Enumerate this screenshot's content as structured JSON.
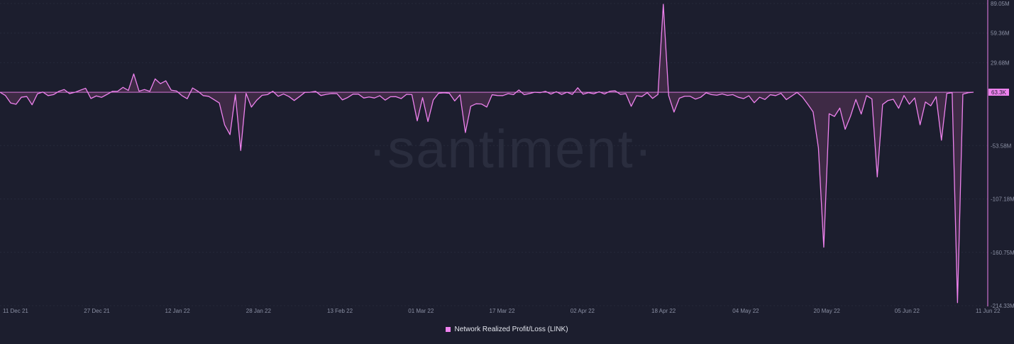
{
  "watermark": "·santiment·",
  "current_value_label": "63.3K",
  "colors": {
    "background": "#1c1e2e",
    "line": "#ee82ee",
    "fill": "#4a2f4e",
    "grid": "#262a3b",
    "tick_text": "#8a8fa3",
    "legend_text": "#e4e6ee",
    "watermark": "#2a2d3e",
    "badge_bg": "#ee82ee",
    "badge_text": "#1c1e2e"
  },
  "chart_data": {
    "type": "area",
    "x_tick_labels": [
      "11 Dec 21",
      "27 Dec 21",
      "12 Jan 22",
      "28 Jan 22",
      "13 Feb 22",
      "01 Mar 22",
      "17 Mar 22",
      "02 Apr 22",
      "18 Apr 22",
      "04 May 22",
      "20 May 22",
      "05 Jun 22",
      "11 Jun 22"
    ],
    "y_tick_labels": [
      "89.05M",
      "59.36M",
      "29.68M",
      "-53.58M",
      "-107.18M",
      "-160.75M",
      "-214.33M"
    ],
    "y_tick_values": [
      89.05,
      59.36,
      29.68,
      -53.58,
      -107.18,
      -160.75,
      -214.33
    ],
    "ylim": [
      -214.33,
      89.05
    ],
    "unit": "M",
    "x_start": "2021-12-11",
    "series": [
      {
        "name": "Network Realized Profit/Loss (LINK)",
        "values": [
          0,
          -3.2,
          -10.8,
          -12.1,
          -5.0,
          -4.3,
          -12.6,
          -1.6,
          0.2,
          -3.4,
          -2.4,
          0.9,
          2.7,
          -1.4,
          -0.1,
          2.0,
          4.0,
          -6.3,
          -3.7,
          -5.1,
          -2.2,
          0.9,
          1.0,
          4.9,
          1.8,
          18.4,
          1.0,
          2.7,
          0.9,
          13.4,
          8.6,
          11.5,
          2.1,
          1.3,
          -3.4,
          -6.5,
          4.3,
          1.0,
          -3.4,
          -4.1,
          -7.4,
          -10.8,
          -32.9,
          -42.6,
          -2.3,
          -58.5,
          -1.1,
          -14.9,
          -8.0,
          -3.1,
          -2.4,
          1.0,
          -4.1,
          -1.7,
          -4.3,
          -8.3,
          -4.3,
          -0.1,
          0.0,
          0.9,
          -3.3,
          -2.1,
          -1.3,
          -1.4,
          -7.7,
          -5.3,
          -1.9,
          -1.9,
          -5.8,
          -4.8,
          -5.8,
          -3.5,
          -7.9,
          -4.5,
          -4.4,
          -6.4,
          -2.1,
          -2.4,
          -28.7,
          -5.4,
          -29.4,
          -7.7,
          -1.0,
          -0.6,
          -1.0,
          -8.7,
          -2.6,
          -40.5,
          -14.1,
          -11.6,
          -11.8,
          -14.9,
          -2.5,
          -3.3,
          -3.4,
          -1.4,
          -2.4,
          2.3,
          -2.5,
          -1.3,
          0.0,
          -0.4,
          0.9,
          -1.9,
          0.5,
          -2.2,
          0.0,
          -2.2,
          4.5,
          -2.0,
          -0.4,
          -1.6,
          0.5,
          -1.8,
          1.0,
          1.4,
          -2.2,
          -1.5,
          -14.1,
          -3.5,
          -4.3,
          -0.5,
          -6.2,
          -2.2,
          88.3,
          -3.4,
          -19.9,
          -6.0,
          -4.0,
          -4.0,
          -6.9,
          -5.0,
          -0.6,
          -2.4,
          -3.0,
          -1.7,
          -3.2,
          -2.4,
          -5.0,
          -6.4,
          -3.5,
          -10.5,
          -5.0,
          -7.3,
          -2.5,
          -3.4,
          -1.1,
          -7.4,
          -3.8,
          -0.2,
          -4.8,
          -12.0,
          -19.7,
          -55.9,
          -155.6,
          -21.6,
          -24.3,
          -15.9,
          -37.2,
          -24.0,
          -7.3,
          -21.9,
          -3.4,
          -6.8,
          -85.0,
          -12.3,
          -8.3,
          -7.1,
          -16.1,
          -3.3,
          -12.0,
          -5.7,
          -32.7,
          -9.8,
          -13.6,
          -4.5,
          -48.2,
          -1.2,
          -0.5,
          -211.3,
          -1.9,
          -0.5,
          0.06
        ]
      }
    ],
    "legend": {
      "entries": [
        "Network Realized Profit/Loss (LINK)"
      ],
      "position": "bottom-center"
    },
    "grid": true
  }
}
